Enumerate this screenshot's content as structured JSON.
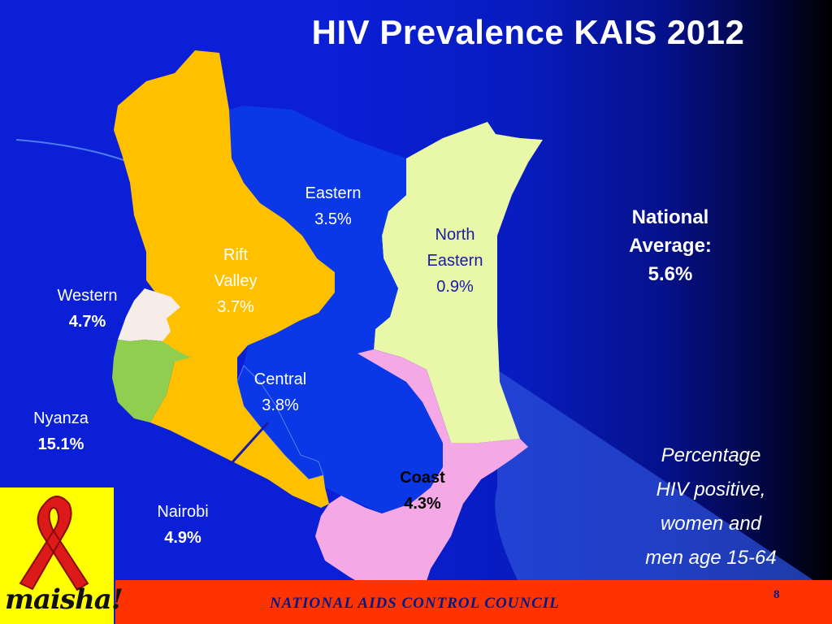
{
  "title": "HIV Prevalence KAIS 2012",
  "regions": [
    {
      "name": "Eastern",
      "value": "3.5%",
      "color": "#0a38e6"
    },
    {
      "name": "North Eastern",
      "name_lines": [
        "North",
        "Eastern"
      ],
      "value": "0.9%",
      "color": "#e8f7a8"
    },
    {
      "name": "Rift Valley",
      "name_lines": [
        "Rift",
        "Valley"
      ],
      "value": "3.7%",
      "color": "#ffc000"
    },
    {
      "name": "Western",
      "value": "4.7%",
      "color": "#f6ece8"
    },
    {
      "name": "Nyanza",
      "value": "15.1%",
      "color": "#8fce4f"
    },
    {
      "name": "Central",
      "value": "3.8%",
      "color": "#0a38e6"
    },
    {
      "name": "Coast",
      "value": "4.3%",
      "color": "#f5a8e6"
    },
    {
      "name": "Nairobi",
      "value": "4.9%",
      "color": "#1a1aa8"
    }
  ],
  "national_average": {
    "label_lines": [
      "National",
      "Average:"
    ],
    "value": "5.6%"
  },
  "note_lines": [
    "Percentage",
    "HIV positive,",
    "women and",
    "men age 15-64"
  ],
  "footer": {
    "text": "NATIONAL AIDS CONTROL COUNCIL",
    "page_number": "8",
    "color": "#ff3300"
  },
  "logo": {
    "text": "maisha!",
    "icon": "red-ribbon-icon",
    "color": "#ffff00"
  }
}
